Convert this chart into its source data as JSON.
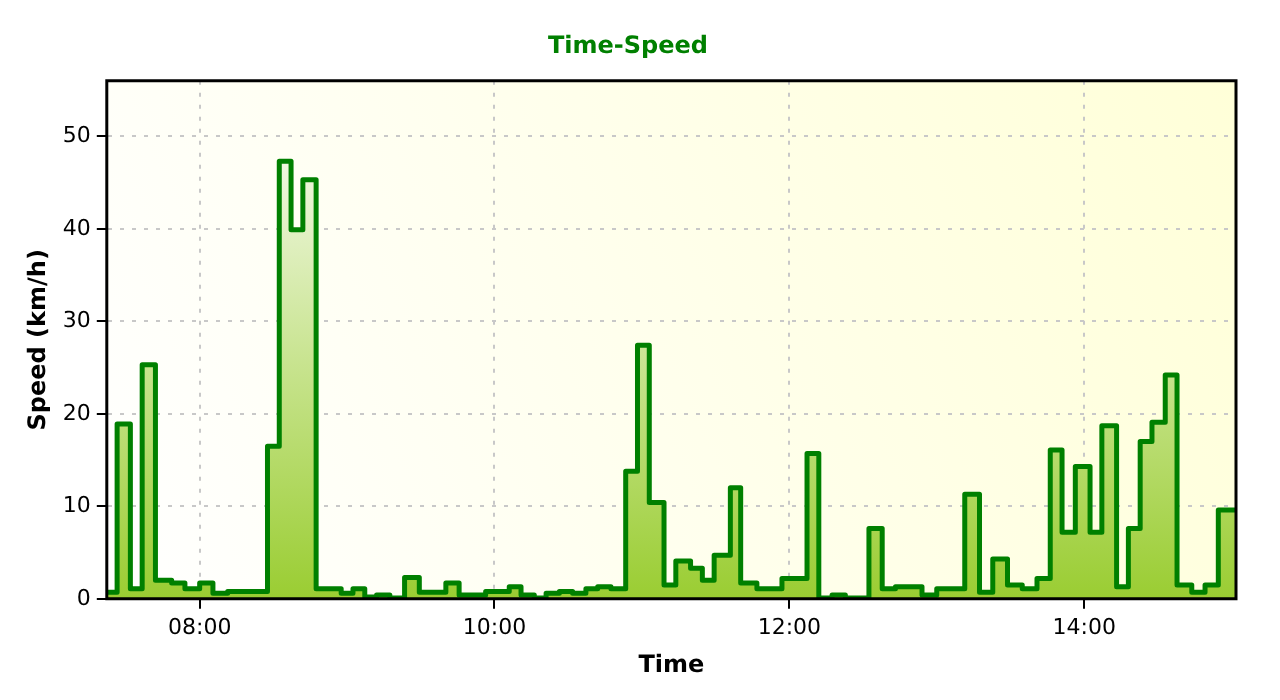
{
  "chart_data": {
    "type": "step",
    "title": "Time-Speed",
    "xlabel": "Time",
    "ylabel": "Speed (km/h)",
    "x": [
      7.37,
      7.44,
      7.53,
      7.61,
      7.7,
      7.81,
      7.9,
      8.0,
      8.09,
      8.19,
      8.46,
      8.54,
      8.62,
      8.7,
      8.79,
      8.96,
      9.04,
      9.12,
      9.2,
      9.29,
      9.39,
      9.49,
      9.67,
      9.76,
      9.94,
      10.1,
      10.18,
      10.27,
      10.35,
      10.44,
      10.53,
      10.62,
      10.7,
      10.79,
      10.89,
      10.97,
      11.05,
      11.15,
      11.23,
      11.33,
      11.41,
      11.49,
      11.6,
      11.67,
      11.78,
      11.95,
      12.12,
      12.2,
      12.29,
      12.38,
      12.54,
      12.63,
      12.72,
      12.9,
      13.0,
      13.19,
      13.29,
      13.38,
      13.48,
      13.58,
      13.68,
      13.77,
      13.85,
      13.94,
      14.04,
      14.12,
      14.22,
      14.3,
      14.38,
      14.46,
      14.55,
      14.63,
      14.73,
      14.82,
      14.91,
      15.03
    ],
    "series": [
      {
        "color": "#008000",
        "values": [
          0.7,
          18.9,
          1.1,
          25.3,
          2.0,
          1.7,
          1.1,
          1.7,
          0.6,
          0.8,
          16.5,
          47.3,
          39.9,
          45.3,
          1.1,
          0.6,
          1.1,
          0.2,
          0.4,
          0.1,
          2.3,
          0.7,
          1.7,
          0.4,
          0.8,
          1.3,
          0.4,
          0.1,
          0.6,
          0.8,
          0.6,
          1.1,
          1.3,
          1.1,
          13.8,
          27.4,
          10.4,
          1.5,
          4.1,
          3.3,
          2.0,
          4.7,
          12.0,
          1.7,
          1.1,
          2.2,
          15.7,
          0.1,
          0.4,
          0.1,
          7.6,
          1.1,
          1.3,
          0.4,
          1.1,
          11.3,
          0.7,
          4.3,
          1.5,
          1.1,
          2.2,
          16.1,
          7.2,
          14.3,
          7.2,
          18.7,
          1.3,
          7.6,
          17.0,
          19.1,
          24.2,
          1.5,
          0.7,
          1.5,
          9.6,
          9.6
        ]
      }
    ],
    "xlim": [
      7.37,
      15.03
    ],
    "xticks": [
      {
        "value": 8,
        "label": "08:00"
      },
      {
        "value": 10,
        "label": "10:00"
      },
      {
        "value": 12,
        "label": "12:00"
      },
      {
        "value": 14,
        "label": "14:00"
      }
    ],
    "ylim": [
      0,
      56
    ],
    "yticks": [
      0,
      10,
      20,
      30,
      40,
      50
    ],
    "grid": true,
    "legend": false
  }
}
